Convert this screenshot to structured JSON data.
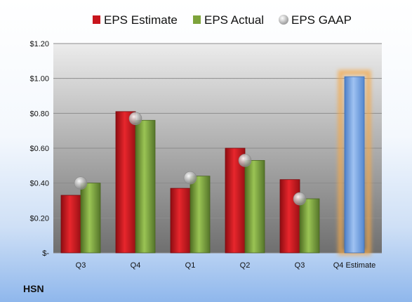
{
  "chart_data": {
    "type": "bar",
    "categories": [
      "Q3",
      "Q4",
      "Q1",
      "Q2",
      "Q3",
      "Q4 Estimate"
    ],
    "series": [
      {
        "name": "EPS Estimate",
        "values": [
          0.33,
          0.81,
          0.37,
          0.6,
          0.42,
          null
        ],
        "color": "#c8141c"
      },
      {
        "name": "EPS Actual",
        "values": [
          0.4,
          0.76,
          0.44,
          0.53,
          0.31,
          null
        ],
        "color": "#7da33b"
      },
      {
        "name": "EPS GAAP",
        "values": [
          0.4,
          0.77,
          0.43,
          0.53,
          0.31,
          null
        ],
        "color": "#a7a7a7",
        "marker": "sphere"
      }
    ],
    "highlight": {
      "category": "Q4 Estimate",
      "value": 1.01,
      "color": "#6f9fe2",
      "glow": "#f4a94a"
    },
    "y_ticks": [
      "$-",
      "$0.20",
      "$0.40",
      "$0.60",
      "$0.80",
      "$1.00",
      "$1.20"
    ],
    "ylim": [
      0,
      1.2
    ],
    "title": "",
    "xlabel": "",
    "ylabel": "",
    "grid": true,
    "legend_position": "top"
  },
  "brand": "HSN"
}
